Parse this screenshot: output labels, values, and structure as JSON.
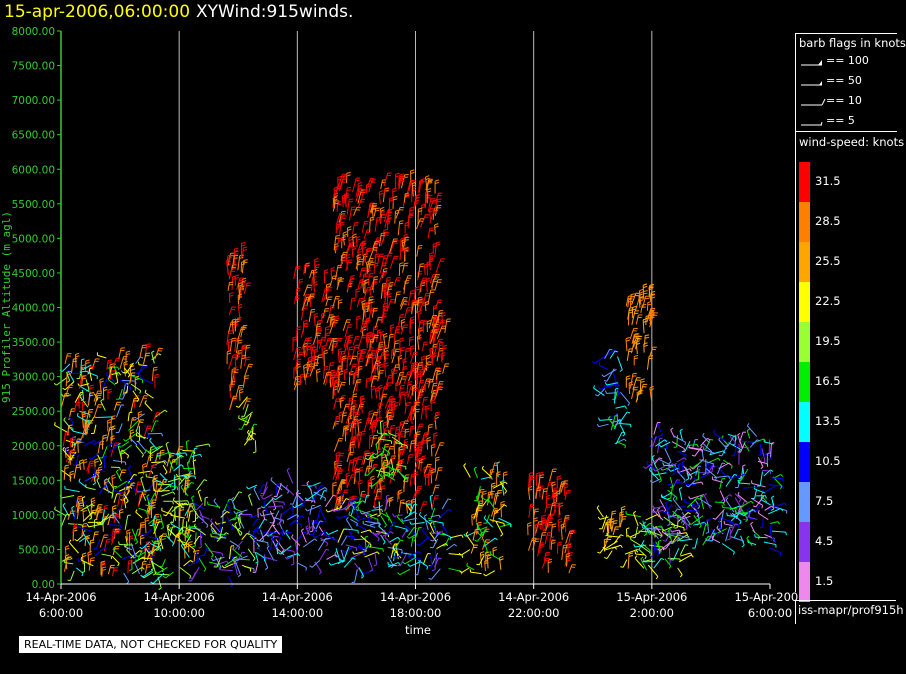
{
  "header": {
    "date": "15-apr-2006,06:00:00",
    "product": "XYWind:915winds."
  },
  "footer": {
    "quality_note": "REAL-TIME DATA, NOT CHECKED FOR QUALITY",
    "source": "iss-mapr/prof915h"
  },
  "colors": {
    "axis": "#33cc33",
    "grid": "#bbbbbb",
    "background": "#000000"
  },
  "legend": {
    "barbs_title": "barb flags in knots",
    "barbs": [
      {
        "label": "== 100"
      },
      {
        "label": "== 50"
      },
      {
        "label": "== 10"
      },
      {
        "label": "== 5"
      }
    ],
    "speed_title": "wind-speed: knots",
    "speed_bins": [
      {
        "label": "31.5",
        "color": "#ff0000"
      },
      {
        "label": "28.5",
        "color": "#ff8000"
      },
      {
        "label": "25.5",
        "color": "#ffa500"
      },
      {
        "label": "22.5",
        "color": "#ffff00"
      },
      {
        "label": "19.5",
        "color": "#99ff33"
      },
      {
        "label": "16.5",
        "color": "#00ee00"
      },
      {
        "label": "13.5",
        "color": "#00ffff"
      },
      {
        "label": "10.5",
        "color": "#0000ff"
      },
      {
        "label": "7.5",
        "color": "#6699ff"
      },
      {
        "label": "4.5",
        "color": "#8833ee"
      },
      {
        "label": "1.5",
        "color": "#ee88ee"
      }
    ]
  },
  "chart_data": {
    "type": "scatter",
    "ylabel": "915 Profiler Altitude (m agl)",
    "xlabel": "time",
    "ylim": [
      0,
      8000
    ],
    "xlim": [
      0,
      24
    ],
    "yticks": [
      {
        "value": 0,
        "label": "0.00"
      },
      {
        "value": 500,
        "label": "500.00"
      },
      {
        "value": 1000,
        "label": "1000.00"
      },
      {
        "value": 1500,
        "label": "1500.00"
      },
      {
        "value": 2000,
        "label": "2000.00"
      },
      {
        "value": 2500,
        "label": "2500.00"
      },
      {
        "value": 3000,
        "label": "3000.00"
      },
      {
        "value": 3500,
        "label": "3500.00"
      },
      {
        "value": 4000,
        "label": "4000.00"
      },
      {
        "value": 4500,
        "label": "4500.00"
      },
      {
        "value": 5000,
        "label": "5000.00"
      },
      {
        "value": 5500,
        "label": "5500.00"
      },
      {
        "value": 6000,
        "label": "6000.00"
      },
      {
        "value": 6500,
        "label": "6500.00"
      },
      {
        "value": 7000,
        "label": "7000.00"
      },
      {
        "value": 7500,
        "label": "7500.00"
      },
      {
        "value": 8000,
        "label": "8000.00"
      }
    ],
    "xticks": [
      {
        "value": 0,
        "date": "14-Apr-2006",
        "time": "6:00:00"
      },
      {
        "value": 4,
        "date": "14-Apr-2006",
        "time": "10:00:00"
      },
      {
        "value": 8,
        "date": "14-Apr-2006",
        "time": "14:00:00"
      },
      {
        "value": 12,
        "date": "14-Apr-2006",
        "time": "18:00:00"
      },
      {
        "value": 16,
        "date": "14-Apr-2006",
        "time": "22:00:00"
      },
      {
        "value": 20,
        "date": "15-Apr-2006",
        "time": "2:00:00"
      },
      {
        "value": 24,
        "date": "15-Apr-2006",
        "time": "6:00:00"
      }
    ],
    "grid_vertical": [
      4,
      8,
      12,
      16,
      20
    ],
    "barb_clusters": [
      {
        "x": [
          0,
          1.5
        ],
        "y": [
          100,
          3200
        ],
        "speeds": [
          31.5,
          28.5,
          25.5,
          22.5,
          19.5,
          13.5,
          10.5
        ]
      },
      {
        "x": [
          1.5,
          3.2
        ],
        "y": [
          100,
          3300
        ],
        "speeds": [
          31.5,
          28.5,
          25.5,
          22.5,
          19.5,
          16.5,
          10.5,
          7.5
        ]
      },
      {
        "x": [
          3.0,
          4.6
        ],
        "y": [
          100,
          2000
        ],
        "speeds": [
          25.5,
          22.5,
          19.5,
          16.5,
          13.5
        ]
      },
      {
        "x": [
          5.6,
          6.3
        ],
        "y": [
          2500,
          4800
        ],
        "speeds": [
          31.5,
          28.5
        ]
      },
      {
        "x": [
          6.2,
          6.6
        ],
        "y": [
          2000,
          2800
        ],
        "speeds": [
          22.5,
          19.5,
          16.5
        ]
      },
      {
        "x": [
          4.5,
          6.5
        ],
        "y": [
          100,
          1200
        ],
        "speeds": [
          22.5,
          19.5,
          16.5,
          10.5,
          7.5,
          4.5
        ]
      },
      {
        "x": [
          6.5,
          9.0
        ],
        "y": [
          300,
          1500
        ],
        "speeds": [
          13.5,
          10.5,
          7.5,
          4.5,
          1.5
        ]
      },
      {
        "x": [
          7.8,
          9.2
        ],
        "y": [
          2800,
          4500
        ],
        "speeds": [
          31.5,
          28.5
        ]
      },
      {
        "x": [
          9.2,
          12.7
        ],
        "y": [
          1000,
          5800
        ],
        "speeds": [
          31.5,
          31.5,
          28.5
        ]
      },
      {
        "x": [
          12.5,
          13.0
        ],
        "y": [
          2500,
          3800
        ],
        "speeds": [
          31.5,
          28.5
        ]
      },
      {
        "x": [
          10.5,
          11.5
        ],
        "y": [
          1500,
          2200
        ],
        "speeds": [
          19.5,
          16.5
        ]
      },
      {
        "x": [
          9.3,
          13.2
        ],
        "y": [
          200,
          1200
        ],
        "speeds": [
          22.5,
          16.5,
          13.5,
          10.5,
          7.5,
          4.5
        ]
      },
      {
        "x": [
          13.8,
          15.0
        ],
        "y": [
          150,
          1600
        ],
        "speeds": [
          28.5,
          25.5,
          22.5,
          16.5,
          13.5
        ]
      },
      {
        "x": [
          15.8,
          17.2
        ],
        "y": [
          150,
          1500
        ],
        "speeds": [
          31.5,
          28.5
        ]
      },
      {
        "x": [
          18.3,
          19.2
        ],
        "y": [
          200,
          1000
        ],
        "speeds": [
          25.5,
          22.5
        ]
      },
      {
        "x": [
          18.3,
          19.0
        ],
        "y": [
          2000,
          3300
        ],
        "speeds": [
          16.5,
          13.5,
          10.5,
          7.5
        ]
      },
      {
        "x": [
          19.1,
          20.0
        ],
        "y": [
          2600,
          4200
        ],
        "speeds": [
          28.5,
          25.5
        ]
      },
      {
        "x": [
          19.5,
          21.0
        ],
        "y": [
          200,
          1000
        ],
        "speeds": [
          22.5,
          19.5,
          16.5,
          13.5
        ]
      },
      {
        "x": [
          20.0,
          24.2
        ],
        "y": [
          500,
          2200
        ],
        "speeds": [
          13.5,
          10.5,
          7.5,
          4.5,
          1.5,
          16.5
        ]
      }
    ]
  }
}
